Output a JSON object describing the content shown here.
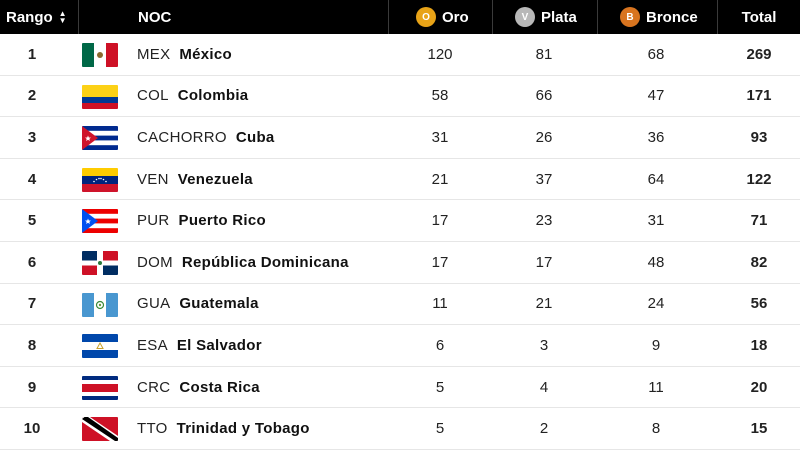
{
  "header": {
    "rank_label": "Rango",
    "noc_label": "NOC",
    "gold_label": "Oro",
    "silver_label": "Plata",
    "bronze_label": "Bronce",
    "total_label": "Total",
    "gold_badge": "O",
    "silver_badge": "V",
    "bronze_badge": "B"
  },
  "colors": {
    "gold": "#e8a317",
    "silver": "#b8b8b8",
    "bronze": "#d8741f",
    "header_bg": "#000000"
  },
  "rows": [
    {
      "rank": "1",
      "code": "MEX",
      "name": "México",
      "gold": "120",
      "silver": "81",
      "bronze": "68",
      "total": "269",
      "flag": "mexico-flag-icon"
    },
    {
      "rank": "2",
      "code": "COL",
      "name": "Colombia",
      "gold": "58",
      "silver": "66",
      "bronze": "47",
      "total": "171",
      "flag": "colombia-flag-icon"
    },
    {
      "rank": "3",
      "code": "CACHORRO",
      "name": "Cuba",
      "gold": "31",
      "silver": "26",
      "bronze": "36",
      "total": "93",
      "flag": "cuba-flag-icon"
    },
    {
      "rank": "4",
      "code": "VEN",
      "name": "Venezuela",
      "gold": "21",
      "silver": "37",
      "bronze": "64",
      "total": "122",
      "flag": "venezuela-flag-icon"
    },
    {
      "rank": "5",
      "code": "PUR",
      "name": "Puerto Rico",
      "gold": "17",
      "silver": "23",
      "bronze": "31",
      "total": "71",
      "flag": "puerto-rico-flag-icon"
    },
    {
      "rank": "6",
      "code": "DOM",
      "name": "República Dominicana",
      "gold": "17",
      "silver": "17",
      "bronze": "48",
      "total": "82",
      "flag": "dominican-republic-flag-icon"
    },
    {
      "rank": "7",
      "code": "GUA",
      "name": "Guatemala",
      "gold": "11",
      "silver": "21",
      "bronze": "24",
      "total": "56",
      "flag": "guatemala-flag-icon"
    },
    {
      "rank": "8",
      "code": "ESA",
      "name": "El Salvador",
      "gold": "6",
      "silver": "3",
      "bronze": "9",
      "total": "18",
      "flag": "el-salvador-flag-icon"
    },
    {
      "rank": "9",
      "code": "CRC",
      "name": "Costa Rica",
      "gold": "5",
      "silver": "4",
      "bronze": "11",
      "total": "20",
      "flag": "costa-rica-flag-icon"
    },
    {
      "rank": "10",
      "code": "TTO",
      "name": "Trinidad y Tobago",
      "gold": "5",
      "silver": "2",
      "bronze": "8",
      "total": "15",
      "flag": "trinidad-tobago-flag-icon"
    }
  ]
}
